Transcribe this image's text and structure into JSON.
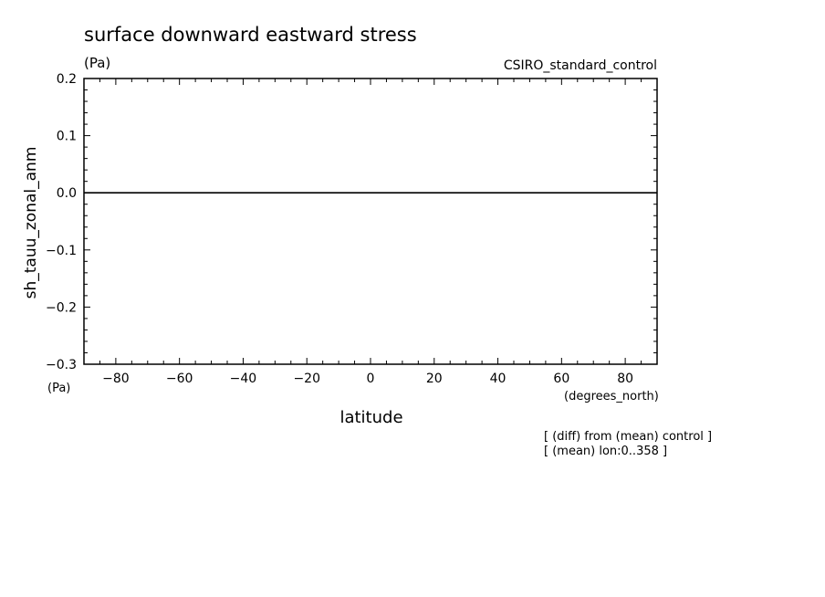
{
  "chart_data": {
    "type": "line",
    "title": "surface downward eastward stress",
    "title_unit": "(Pa)",
    "source_label": "CSIRO_standard_control",
    "ylabel": "sh_tauu_zonal_anm",
    "y_unit": "(Pa)",
    "xlabel": "latitude",
    "x_unit": "(degrees_north)",
    "xlim": [
      -90,
      90
    ],
    "ylim": [
      -0.3,
      0.2
    ],
    "x_ticks": [
      -80,
      -60,
      -40,
      -20,
      0,
      20,
      40,
      60,
      80
    ],
    "x_tick_labels": [
      "−80",
      "−60",
      "−40",
      "−20",
      "0",
      "20",
      "40",
      "60",
      "80"
    ],
    "y_ticks": [
      0.2,
      0.1,
      0.0,
      -0.1,
      -0.2,
      -0.3
    ],
    "y_tick_labels": [
      "0.2",
      "0.1",
      "0.0",
      "−0.1",
      "−0.2",
      "−0.3"
    ],
    "grid": false,
    "series": [
      {
        "x": [
          -90,
          90
        ],
        "y": [
          0.0,
          0.0
        ]
      }
    ],
    "annotations": [
      "[ (diff) from (mean) control ]",
      "[ (mean) lon:0..358 ]"
    ]
  }
}
